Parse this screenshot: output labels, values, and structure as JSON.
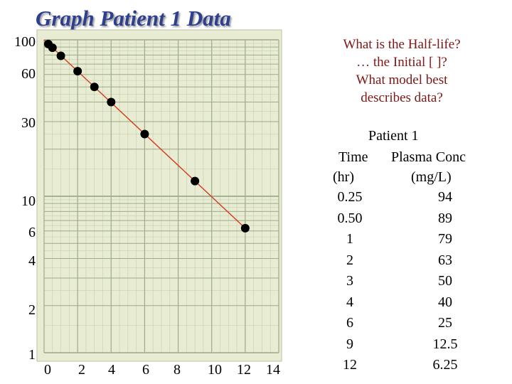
{
  "slide": {
    "title": "Graph Patient 1 Data",
    "questions": [
      "What is the Half-life?",
      "… the Initial [ ]?",
      "What model best",
      "describes data?"
    ]
  },
  "table": {
    "caption": "Patient 1",
    "headers": [
      "Time",
      "Plasma Conc"
    ],
    "units": [
      "(hr)",
      "(mg/L)"
    ],
    "rows": [
      [
        "0.25",
        "94"
      ],
      [
        "0.50",
        "89"
      ],
      [
        "1",
        "79"
      ],
      [
        "2",
        "63"
      ],
      [
        "3",
        "50"
      ],
      [
        "4",
        "40"
      ],
      [
        "6",
        "25"
      ],
      [
        "9",
        "12.5"
      ],
      [
        "12",
        "6.25"
      ]
    ]
  },
  "chart_data": {
    "type": "scatter",
    "title": "Graph Patient 1 Data",
    "xlabel": "",
    "ylabel": "",
    "y_scale": "log",
    "xlim": [
      0,
      14
    ],
    "ylim": [
      1,
      100
    ],
    "x_ticks": [
      "0",
      "2",
      "4",
      "6",
      "8",
      "10",
      "12",
      "14"
    ],
    "y_ticks": [
      "100",
      "60",
      "30",
      "10",
      "6",
      "4",
      "2",
      "1"
    ],
    "grid": true,
    "marker_color": "#000000",
    "fit_line_color": "#d33a1e",
    "paper_color": "#e8ecd2",
    "points": [
      {
        "x": 0.25,
        "y": 94
      },
      {
        "x": 0.5,
        "y": 89
      },
      {
        "x": 1,
        "y": 79
      },
      {
        "x": 2,
        "y": 63
      },
      {
        "x": 3,
        "y": 50
      },
      {
        "x": 4,
        "y": 40
      },
      {
        "x": 6,
        "y": 25
      },
      {
        "x": 9,
        "y": 12.5
      },
      {
        "x": 12,
        "y": 6.25
      }
    ],
    "fit_line": [
      {
        "x": 0,
        "y": 100
      },
      {
        "x": 12,
        "y": 6.25
      }
    ]
  }
}
